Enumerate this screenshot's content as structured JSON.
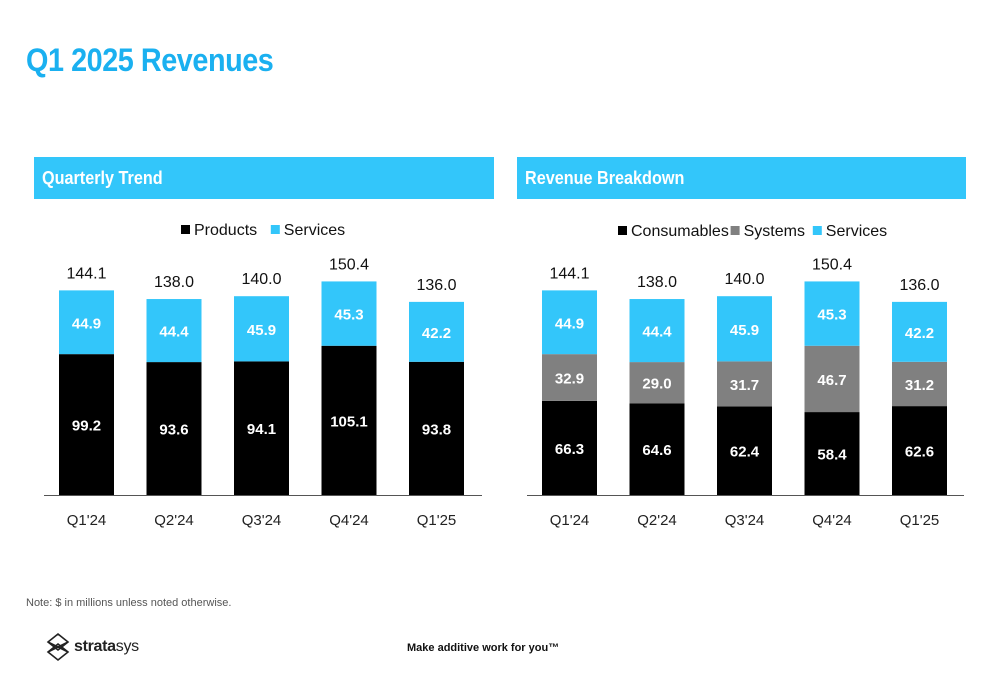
{
  "page": {
    "title": "Q1 2025 Revenues",
    "note": "Note: $ in millions unless noted otherwise.",
    "tagline": "Make additive work for you™",
    "logo_text_prefix": "strata",
    "logo_text_suffix": "sys"
  },
  "colors": {
    "accent": "#1ab0f0",
    "header_bg": "#33c6fa",
    "products": "#000000",
    "consumables": "#000000",
    "systems": "#808080",
    "services": "#33c6fa"
  },
  "panels": {
    "left_title": "Quarterly Trend",
    "right_title": "Revenue Breakdown"
  },
  "chart_data": [
    {
      "type": "bar",
      "stacked": true,
      "title": "Quarterly Trend",
      "categories": [
        "Q1'24",
        "Q2'24",
        "Q3'24",
        "Q4'24",
        "Q1'25"
      ],
      "series": [
        {
          "name": "Products",
          "color": "#000000",
          "label_color": "#ffffff",
          "values": [
            99.2,
            93.6,
            94.1,
            105.1,
            93.8
          ]
        },
        {
          "name": "Services",
          "color": "#33c6fa",
          "label_color": "#ffffff",
          "values": [
            44.9,
            44.4,
            45.9,
            45.3,
            42.2
          ]
        }
      ],
      "totals": [
        144.1,
        138.0,
        140.0,
        150.4,
        136.0
      ],
      "total_labels": [
        "144.1",
        "138.0",
        "140.0",
        "150.4",
        "136.0"
      ],
      "series_labels": [
        [
          "99.2",
          "93.6",
          "94.1",
          "105.1",
          "93.8"
        ],
        [
          "44.9",
          "44.4",
          "45.9",
          "45.3",
          "42.2"
        ]
      ],
      "legend": "top-center",
      "grid": false
    },
    {
      "type": "bar",
      "stacked": true,
      "title": "Revenue Breakdown",
      "categories": [
        "Q1'24",
        "Q2'24",
        "Q3'24",
        "Q4'24",
        "Q1'25"
      ],
      "series": [
        {
          "name": "Consumables",
          "color": "#000000",
          "label_color": "#ffffff",
          "values": [
            66.3,
            64.6,
            62.4,
            58.4,
            62.6
          ]
        },
        {
          "name": "Systems",
          "color": "#808080",
          "label_color": "#ffffff",
          "values": [
            32.9,
            29.0,
            31.7,
            46.7,
            31.2
          ]
        },
        {
          "name": "Services",
          "color": "#33c6fa",
          "label_color": "#ffffff",
          "values": [
            44.9,
            44.4,
            45.9,
            45.3,
            42.2
          ]
        }
      ],
      "totals": [
        144.1,
        138.0,
        140.0,
        150.4,
        136.0
      ],
      "total_labels": [
        "144.1",
        "138.0",
        "140.0",
        "150.4",
        "136.0"
      ],
      "series_labels": [
        [
          "66.3",
          "64.6",
          "62.4",
          "58.4",
          "62.6"
        ],
        [
          "32.9",
          "29.0",
          "31.7",
          "46.7",
          "31.2"
        ],
        [
          "44.9",
          "44.4",
          "45.9",
          "45.3",
          "42.2"
        ]
      ],
      "legend": "top-center",
      "grid": false
    }
  ]
}
